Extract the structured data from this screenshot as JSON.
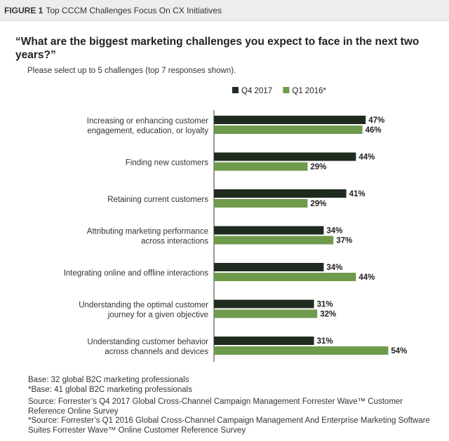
{
  "figure": {
    "label": "FIGURE 1",
    "title": "Top CCCM Challenges Focus On CX Initiatives"
  },
  "question": "“What are the biggest marketing challenges you expect to face in the next two years?”",
  "subtitle": "Please select up to 5 challenges (top 7 responses shown).",
  "chart_data": {
    "type": "bar",
    "orientation": "horizontal",
    "categories": [
      [
        "Increasing or enhancing customer",
        "engagement, education, or loyalty"
      ],
      [
        "Finding new customers"
      ],
      [
        "Retaining current customers"
      ],
      [
        "Attributing marketing performance",
        "across interactions"
      ],
      [
        "Integrating online and offline interactions"
      ],
      [
        "Understanding the optimal customer",
        "journey for a given objective"
      ],
      [
        "Understanding customer behavior",
        "across channels and devices"
      ]
    ],
    "series": [
      {
        "name": "Q4 2017",
        "color": "#1f2b1f",
        "values": [
          47,
          44,
          41,
          34,
          34,
          31,
          31
        ]
      },
      {
        "name": "Q1 2016*",
        "color": "#6e9a4c",
        "values": [
          46,
          29,
          29,
          37,
          44,
          32,
          54
        ]
      }
    ],
    "value_suffix": "%",
    "legend_position": "top-right",
    "grid": false
  },
  "notes": {
    "base1": "Base: 32 global B2C marketing professionals",
    "base2": "*Base: 41 global B2C marketing professionals",
    "source1": "Source: Forrester’s Q4 2017 Global Cross-Channel Campaign Management Forrester Wave™ Customer Reference Online Survey",
    "source2": "*Source: Forrester’s Q1 2016 Global Cross-Channel Campaign Management And Enterprise Marketing Software Suites Forrester Wave™ Online Customer Reference Survey"
  }
}
